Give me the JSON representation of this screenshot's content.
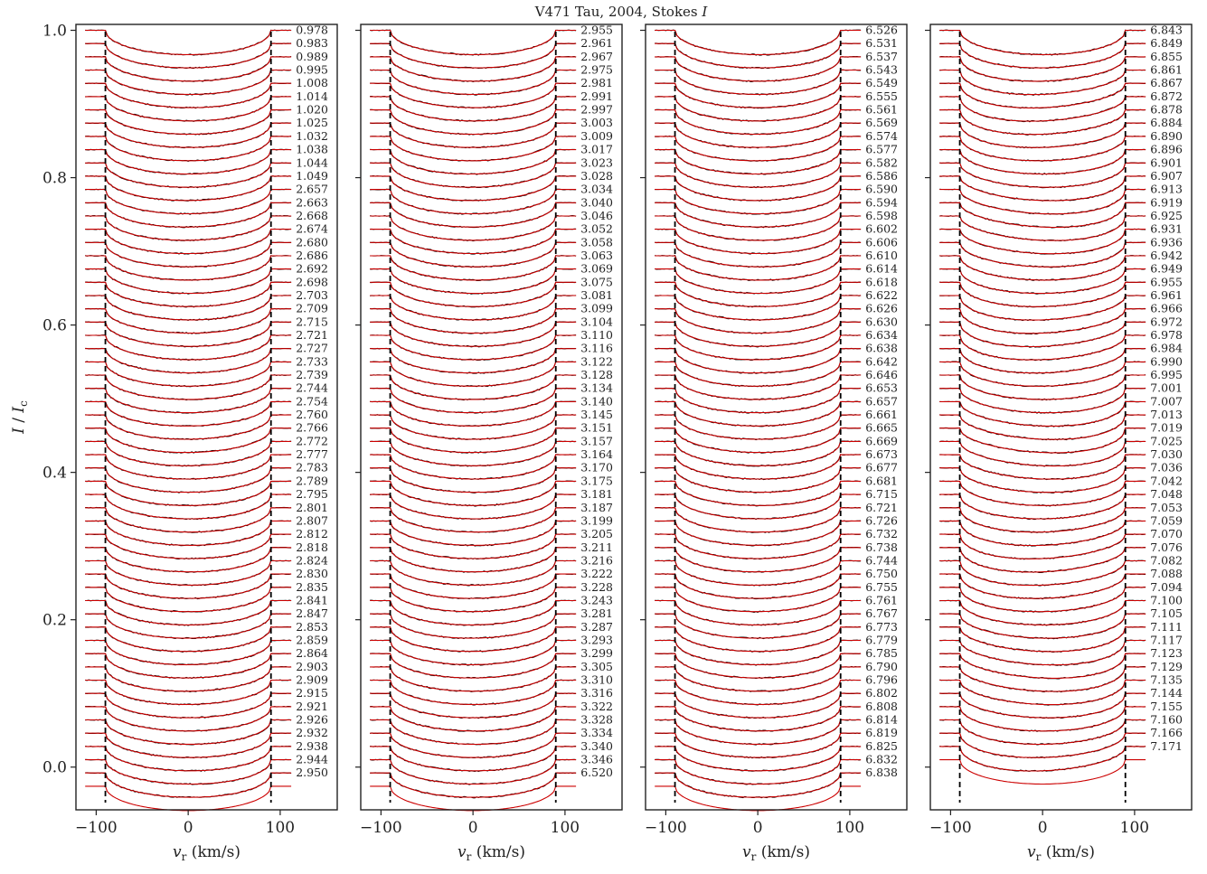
{
  "title": "V471 Tau, 2004, Stokes I",
  "chart_data": {
    "type": "line",
    "title": "V471 Tau, 2004, Stokes I",
    "xlabel": "v_r (km/s)",
    "ylabel": "I / I_c",
    "xlim": [
      -122,
      162
    ],
    "ylim": [
      -0.058,
      1.008
    ],
    "x_ticks": [
      -100,
      0,
      100
    ],
    "x_tick_labels": [
      "−100",
      "0",
      "100"
    ],
    "y_ticks": [
      0.0,
      0.2,
      0.4,
      0.6,
      0.8,
      1.0
    ],
    "y_tick_labels": [
      "0.0",
      "0.2",
      "0.4",
      "0.6",
      "0.8",
      "1.0"
    ],
    "vsini_markers": [
      -90,
      90
    ],
    "profile_offset_step": 0.018,
    "profile_depth": 0.033,
    "series_colors": {
      "observed": "#000000",
      "model": "#cc0000"
    },
    "grid": false,
    "panels": [
      {
        "phases": [
          "0.978",
          "0.983",
          "0.989",
          "0.995",
          "1.008",
          "1.014",
          "1.020",
          "1.025",
          "1.032",
          "1.038",
          "1.044",
          "1.049",
          "2.657",
          "2.663",
          "2.668",
          "2.674",
          "2.680",
          "2.686",
          "2.692",
          "2.698",
          "2.703",
          "2.709",
          "2.715",
          "2.721",
          "2.727",
          "2.733",
          "2.739",
          "2.744",
          "2.754",
          "2.760",
          "2.766",
          "2.772",
          "2.777",
          "2.783",
          "2.789",
          "2.795",
          "2.801",
          "2.807",
          "2.812",
          "2.818",
          "2.824",
          "2.830",
          "2.835",
          "2.841",
          "2.847",
          "2.853",
          "2.859",
          "2.864",
          "2.903",
          "2.909",
          "2.915",
          "2.921",
          "2.926",
          "2.932",
          "2.938",
          "2.944",
          "2.950"
        ]
      },
      {
        "phases": [
          "2.955",
          "2.961",
          "2.967",
          "2.975",
          "2.981",
          "2.991",
          "2.997",
          "3.003",
          "3.009",
          "3.017",
          "3.023",
          "3.028",
          "3.034",
          "3.040",
          "3.046",
          "3.052",
          "3.058",
          "3.063",
          "3.069",
          "3.075",
          "3.081",
          "3.099",
          "3.104",
          "3.110",
          "3.116",
          "3.122",
          "3.128",
          "3.134",
          "3.140",
          "3.145",
          "3.151",
          "3.157",
          "3.164",
          "3.170",
          "3.175",
          "3.181",
          "3.187",
          "3.199",
          "3.205",
          "3.211",
          "3.216",
          "3.222",
          "3.228",
          "3.243",
          "3.281",
          "3.287",
          "3.293",
          "3.299",
          "3.305",
          "3.310",
          "3.316",
          "3.322",
          "3.328",
          "3.334",
          "3.340",
          "3.346",
          "6.520"
        ]
      },
      {
        "phases": [
          "6.526",
          "6.531",
          "6.537",
          "6.543",
          "6.549",
          "6.555",
          "6.561",
          "6.569",
          "6.574",
          "6.577",
          "6.582",
          "6.586",
          "6.590",
          "6.594",
          "6.598",
          "6.602",
          "6.606",
          "6.610",
          "6.614",
          "6.618",
          "6.622",
          "6.626",
          "6.630",
          "6.634",
          "6.638",
          "6.642",
          "6.646",
          "6.653",
          "6.657",
          "6.661",
          "6.665",
          "6.669",
          "6.673",
          "6.677",
          "6.681",
          "6.715",
          "6.721",
          "6.726",
          "6.732",
          "6.738",
          "6.744",
          "6.750",
          "6.755",
          "6.761",
          "6.767",
          "6.773",
          "6.779",
          "6.785",
          "6.790",
          "6.796",
          "6.802",
          "6.808",
          "6.814",
          "6.819",
          "6.825",
          "6.832",
          "6.838"
        ]
      },
      {
        "phases": [
          "6.843",
          "6.849",
          "6.855",
          "6.861",
          "6.867",
          "6.872",
          "6.878",
          "6.884",
          "6.890",
          "6.896",
          "6.901",
          "6.907",
          "6.913",
          "6.919",
          "6.925",
          "6.931",
          "6.936",
          "6.942",
          "6.949",
          "6.955",
          "6.961",
          "6.966",
          "6.972",
          "6.978",
          "6.984",
          "6.990",
          "6.995",
          "7.001",
          "7.007",
          "7.013",
          "7.019",
          "7.025",
          "7.030",
          "7.036",
          "7.042",
          "7.048",
          "7.053",
          "7.059",
          "7.070",
          "7.076",
          "7.082",
          "7.088",
          "7.094",
          "7.100",
          "7.105",
          "7.111",
          "7.117",
          "7.123",
          "7.129",
          "7.135",
          "7.144",
          "7.155",
          "7.160",
          "7.166",
          "7.171"
        ]
      }
    ]
  }
}
